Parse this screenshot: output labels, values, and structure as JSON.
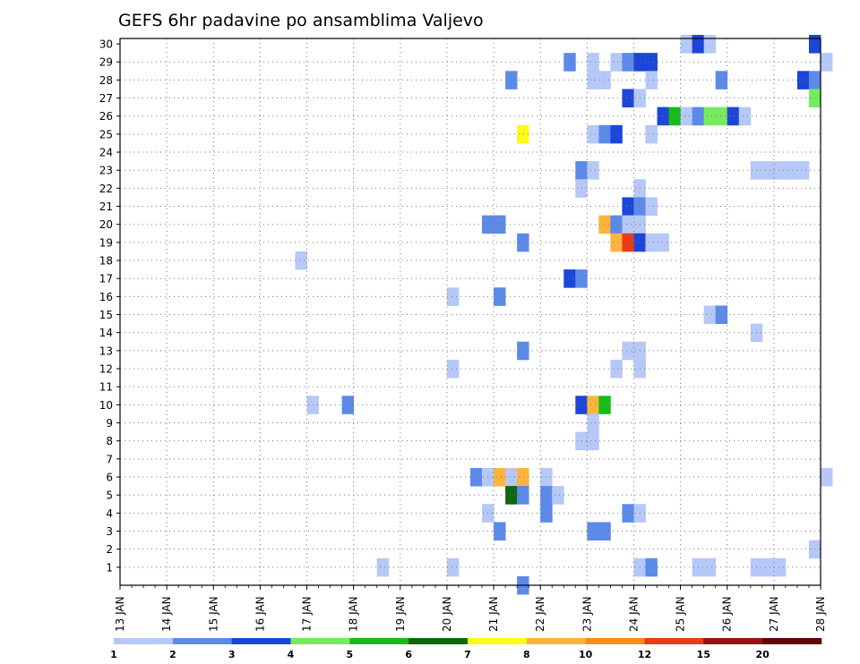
{
  "chart_data": {
    "type": "heatmap",
    "title": "GEFS 6hr padavine po ansamblima Valjevo",
    "x_tick_labels": [
      "13 JAN",
      "14 JAN",
      "15 JAN",
      "16 JAN",
      "17 JAN",
      "18 JAN",
      "19 JAN",
      "20 JAN",
      "21 JAN",
      "22 JAN",
      "23 JAN",
      "24 JAN",
      "25 JAN",
      "26 JAN",
      "27 JAN",
      "28 JAN"
    ],
    "y_tick_labels": [
      "1",
      "2",
      "3",
      "4",
      "5",
      "6",
      "7",
      "8",
      "9",
      "10",
      "11",
      "12",
      "13",
      "14",
      "15",
      "16",
      "17",
      "18",
      "19",
      "20",
      "21",
      "22",
      "23",
      "24",
      "25",
      "26",
      "27",
      "28",
      "29",
      "30"
    ],
    "x_range_days": [
      13.0,
      28.0
    ],
    "y_range": [
      0,
      30
    ],
    "grid": true,
    "step_hours": 6,
    "colorbar": {
      "labels": [
        "1",
        "2",
        "3",
        "4",
        "5",
        "6",
        "7",
        "8",
        "10",
        "12",
        "15",
        "20"
      ],
      "colors": [
        "#b5c8f8",
        "#5c8ae8",
        "#1c46d8",
        "#74ec5c",
        "#18bc18",
        "#0c680c",
        "#fcfc18",
        "#fcb43c",
        "#fc8c18",
        "#e83c14",
        "#9c1010",
        "#5c0808"
      ]
    },
    "cells": [
      {
        "m": 30,
        "x": 25.0,
        "c": 1
      },
      {
        "m": 30,
        "x": 25.25,
        "c": 3
      },
      {
        "m": 30,
        "x": 25.5,
        "c": 1
      },
      {
        "m": 30,
        "x": 27.75,
        "c": 3
      },
      {
        "m": 29,
        "x": 22.5,
        "c": 2
      },
      {
        "m": 29,
        "x": 23.0,
        "c": 1
      },
      {
        "m": 29,
        "x": 23.5,
        "c": 1
      },
      {
        "m": 29,
        "x": 23.75,
        "c": 2
      },
      {
        "m": 29,
        "x": 24.0,
        "c": 3
      },
      {
        "m": 29,
        "x": 24.25,
        "c": 3
      },
      {
        "m": 29,
        "x": 28.0,
        "c": 1
      },
      {
        "m": 28,
        "x": 21.25,
        "c": 2
      },
      {
        "m": 28,
        "x": 23.0,
        "c": 1
      },
      {
        "m": 28,
        "x": 23.25,
        "c": 1
      },
      {
        "m": 28,
        "x": 24.25,
        "c": 1
      },
      {
        "m": 28,
        "x": 25.75,
        "c": 2
      },
      {
        "m": 28,
        "x": 27.5,
        "c": 3
      },
      {
        "m": 28,
        "x": 27.75,
        "c": 2
      },
      {
        "m": 27,
        "x": 23.75,
        "c": 3
      },
      {
        "m": 27,
        "x": 24.0,
        "c": 1
      },
      {
        "m": 27,
        "x": 27.75,
        "c": 4
      },
      {
        "m": 26,
        "x": 24.5,
        "c": 3
      },
      {
        "m": 26,
        "x": 24.75,
        "c": 5
      },
      {
        "m": 26,
        "x": 25.0,
        "c": 1
      },
      {
        "m": 26,
        "x": 25.25,
        "c": 2
      },
      {
        "m": 26,
        "x": 25.5,
        "c": 4
      },
      {
        "m": 26,
        "x": 25.75,
        "c": 4
      },
      {
        "m": 26,
        "x": 26.0,
        "c": 3
      },
      {
        "m": 26,
        "x": 26.25,
        "c": 1
      },
      {
        "m": 25,
        "x": 21.5,
        "c": 7
      },
      {
        "m": 25,
        "x": 23.0,
        "c": 1
      },
      {
        "m": 25,
        "x": 23.25,
        "c": 2
      },
      {
        "m": 25,
        "x": 23.5,
        "c": 3
      },
      {
        "m": 25,
        "x": 24.25,
        "c": 1
      },
      {
        "m": 23,
        "x": 22.75,
        "c": 2
      },
      {
        "m": 23,
        "x": 23.0,
        "c": 1
      },
      {
        "m": 23,
        "x": 26.5,
        "c": 1
      },
      {
        "m": 23,
        "x": 26.75,
        "c": 1
      },
      {
        "m": 23,
        "x": 27.0,
        "c": 1
      },
      {
        "m": 23,
        "x": 27.25,
        "c": 1
      },
      {
        "m": 23,
        "x": 27.5,
        "c": 1
      },
      {
        "m": 22,
        "x": 22.75,
        "c": 1
      },
      {
        "m": 22,
        "x": 24.0,
        "c": 1
      },
      {
        "m": 21,
        "x": 23.75,
        "c": 3
      },
      {
        "m": 21,
        "x": 24.0,
        "c": 2
      },
      {
        "m": 21,
        "x": 24.25,
        "c": 1
      },
      {
        "m": 20,
        "x": 20.75,
        "c": 2
      },
      {
        "m": 20,
        "x": 21.0,
        "c": 2
      },
      {
        "m": 20,
        "x": 23.25,
        "c": 8
      },
      {
        "m": 20,
        "x": 23.5,
        "c": 2
      },
      {
        "m": 20,
        "x": 23.75,
        "c": 1
      },
      {
        "m": 20,
        "x": 24.0,
        "c": 1
      },
      {
        "m": 19,
        "x": 21.5,
        "c": 2
      },
      {
        "m": 19,
        "x": 23.5,
        "c": 8
      },
      {
        "m": 19,
        "x": 23.75,
        "c": 10
      },
      {
        "m": 19,
        "x": 24.0,
        "c": 3
      },
      {
        "m": 19,
        "x": 24.25,
        "c": 1
      },
      {
        "m": 19,
        "x": 24.5,
        "c": 1
      },
      {
        "m": 18,
        "x": 16.75,
        "c": 1
      },
      {
        "m": 17,
        "x": 22.5,
        "c": 3
      },
      {
        "m": 17,
        "x": 22.75,
        "c": 2
      },
      {
        "m": 16,
        "x": 20.0,
        "c": 1
      },
      {
        "m": 16,
        "x": 21.0,
        "c": 2
      },
      {
        "m": 15,
        "x": 25.5,
        "c": 1
      },
      {
        "m": 15,
        "x": 25.75,
        "c": 2
      },
      {
        "m": 14,
        "x": 26.5,
        "c": 1
      },
      {
        "m": 13,
        "x": 21.5,
        "c": 2
      },
      {
        "m": 13,
        "x": 23.75,
        "c": 1
      },
      {
        "m": 13,
        "x": 24.0,
        "c": 1
      },
      {
        "m": 12,
        "x": 20.0,
        "c": 1
      },
      {
        "m": 12,
        "x": 23.5,
        "c": 1
      },
      {
        "m": 12,
        "x": 24.0,
        "c": 1
      },
      {
        "m": 10,
        "x": 17.0,
        "c": 1
      },
      {
        "m": 10,
        "x": 17.75,
        "c": 2
      },
      {
        "m": 10,
        "x": 22.75,
        "c": 3
      },
      {
        "m": 10,
        "x": 23.0,
        "c": 8
      },
      {
        "m": 10,
        "x": 23.25,
        "c": 5
      },
      {
        "m": 9,
        "x": 23.0,
        "c": 1
      },
      {
        "m": 8,
        "x": 22.75,
        "c": 1
      },
      {
        "m": 8,
        "x": 23.0,
        "c": 1
      },
      {
        "m": 6,
        "x": 20.5,
        "c": 2
      },
      {
        "m": 6,
        "x": 20.75,
        "c": 1
      },
      {
        "m": 6,
        "x": 21.0,
        "c": 8
      },
      {
        "m": 6,
        "x": 21.25,
        "c": 1
      },
      {
        "m": 6,
        "x": 21.5,
        "c": 8
      },
      {
        "m": 6,
        "x": 22.0,
        "c": 1
      },
      {
        "m": 6,
        "x": 28.0,
        "c": 1
      },
      {
        "m": 5,
        "x": 21.25,
        "c": 6
      },
      {
        "m": 5,
        "x": 21.5,
        "c": 2
      },
      {
        "m": 5,
        "x": 22.0,
        "c": 2
      },
      {
        "m": 5,
        "x": 22.25,
        "c": 1
      },
      {
        "m": 4,
        "x": 20.75,
        "c": 1
      },
      {
        "m": 4,
        "x": 22.0,
        "c": 2
      },
      {
        "m": 4,
        "x": 23.75,
        "c": 2
      },
      {
        "m": 4,
        "x": 24.0,
        "c": 1
      },
      {
        "m": 3,
        "x": 21.0,
        "c": 2
      },
      {
        "m": 3,
        "x": 23.0,
        "c": 2
      },
      {
        "m": 3,
        "x": 23.25,
        "c": 2
      },
      {
        "m": 2,
        "x": 27.75,
        "c": 1
      },
      {
        "m": 1,
        "x": 18.5,
        "c": 1
      },
      {
        "m": 1,
        "x": 20.0,
        "c": 1
      },
      {
        "m": 1,
        "x": 24.0,
        "c": 1
      },
      {
        "m": 1,
        "x": 24.25,
        "c": 2
      },
      {
        "m": 1,
        "x": 25.25,
        "c": 1
      },
      {
        "m": 1,
        "x": 25.5,
        "c": 1
      },
      {
        "m": 1,
        "x": 26.5,
        "c": 1
      },
      {
        "m": 1,
        "x": 26.75,
        "c": 1
      },
      {
        "m": 1,
        "x": 27.0,
        "c": 1
      },
      {
        "m": 0,
        "x": 21.5,
        "c": 2
      }
    ]
  }
}
